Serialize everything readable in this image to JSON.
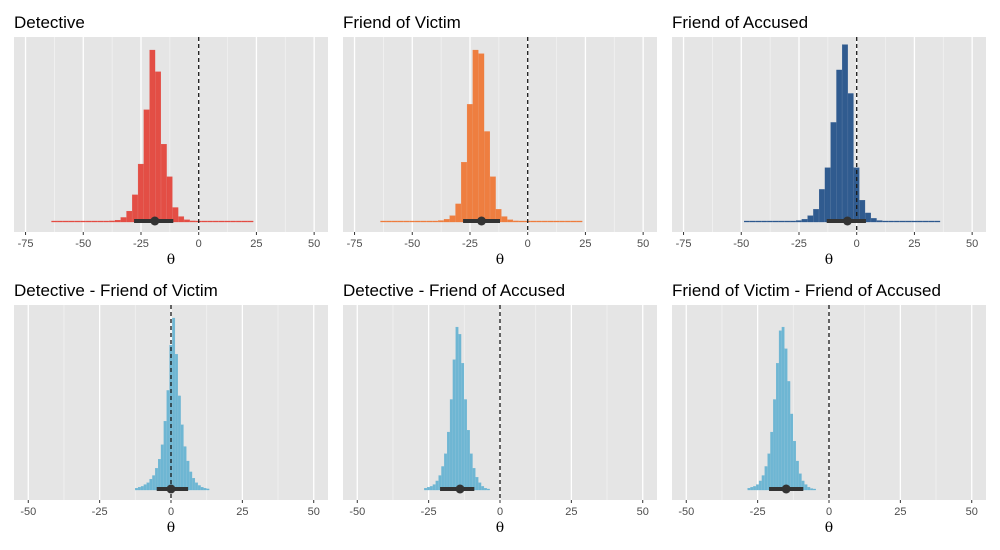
{
  "chart_data": [
    {
      "type": "histogram",
      "title": "Detective",
      "xlabel": "θ",
      "xlim": [
        -80,
        56
      ],
      "xticks": [
        -75,
        -50,
        -25,
        0,
        25,
        50
      ],
      "ref_line": 0,
      "color": "#e3463c",
      "bin_width": 2.5,
      "bins": [
        {
          "x": -62.5,
          "h": 0.004
        },
        {
          "x": -60,
          "h": 0.004
        },
        {
          "x": -57.5,
          "h": 0.004
        },
        {
          "x": -55,
          "h": 0.004
        },
        {
          "x": -52.5,
          "h": 0.004
        },
        {
          "x": -50,
          "h": 0.004
        },
        {
          "x": -47.5,
          "h": 0.004
        },
        {
          "x": -45,
          "h": 0.004
        },
        {
          "x": -42.5,
          "h": 0.004
        },
        {
          "x": -40,
          "h": 0.004
        },
        {
          "x": -37.5,
          "h": 0.006
        },
        {
          "x": -35,
          "h": 0.01
        },
        {
          "x": -32.5,
          "h": 0.025
        },
        {
          "x": -30,
          "h": 0.06
        },
        {
          "x": -27.5,
          "h": 0.15
        },
        {
          "x": -25,
          "h": 0.32
        },
        {
          "x": -22.5,
          "h": 0.62
        },
        {
          "x": -20,
          "h": 0.95
        },
        {
          "x": -17.5,
          "h": 0.83
        },
        {
          "x": -15,
          "h": 0.43
        },
        {
          "x": -12.5,
          "h": 0.25
        },
        {
          "x": -10,
          "h": 0.08
        },
        {
          "x": -7.5,
          "h": 0.03
        },
        {
          "x": -5,
          "h": 0.012
        },
        {
          "x": -2.5,
          "h": 0.006
        },
        {
          "x": 0,
          "h": 0.004
        },
        {
          "x": 2.5,
          "h": 0.004
        },
        {
          "x": 5,
          "h": 0.004
        },
        {
          "x": 7.5,
          "h": 0.004
        },
        {
          "x": 10,
          "h": 0.004
        },
        {
          "x": 12.5,
          "h": 0.004
        },
        {
          "x": 15,
          "h": 0.004
        },
        {
          "x": 17.5,
          "h": 0.004
        },
        {
          "x": 20,
          "h": 0.004
        },
        {
          "x": 22.5,
          "h": 0.004
        }
      ],
      "point": -19,
      "interval": [
        -28,
        -11
      ]
    },
    {
      "type": "histogram",
      "title": "Friend of Victim",
      "xlabel": "θ",
      "xlim": [
        -80,
        56
      ],
      "xticks": [
        -75,
        -50,
        -25,
        0,
        25,
        50
      ],
      "ref_line": 0,
      "color": "#ee7837",
      "bin_width": 2.5,
      "bins": [
        {
          "x": -62.5,
          "h": 0.004
        },
        {
          "x": -60,
          "h": 0.004
        },
        {
          "x": -57.5,
          "h": 0.004
        },
        {
          "x": -55,
          "h": 0.004
        },
        {
          "x": -52.5,
          "h": 0.004
        },
        {
          "x": -50,
          "h": 0.004
        },
        {
          "x": -47.5,
          "h": 0.004
        },
        {
          "x": -45,
          "h": 0.004
        },
        {
          "x": -42.5,
          "h": 0.004
        },
        {
          "x": -40,
          "h": 0.005
        },
        {
          "x": -37.5,
          "h": 0.008
        },
        {
          "x": -35,
          "h": 0.015
        },
        {
          "x": -32.5,
          "h": 0.035
        },
        {
          "x": -30,
          "h": 0.1
        },
        {
          "x": -27.5,
          "h": 0.33
        },
        {
          "x": -25,
          "h": 0.65
        },
        {
          "x": -22.5,
          "h": 0.95
        },
        {
          "x": -20,
          "h": 0.93
        },
        {
          "x": -17.5,
          "h": 0.5
        },
        {
          "x": -15,
          "h": 0.25
        },
        {
          "x": -12.5,
          "h": 0.07
        },
        {
          "x": -10,
          "h": 0.03
        },
        {
          "x": -7.5,
          "h": 0.012
        },
        {
          "x": -5,
          "h": 0.006
        },
        {
          "x": -2.5,
          "h": 0.004
        },
        {
          "x": 0,
          "h": 0.004
        },
        {
          "x": 2.5,
          "h": 0.004
        },
        {
          "x": 5,
          "h": 0.004
        },
        {
          "x": 7.5,
          "h": 0.004
        },
        {
          "x": 10,
          "h": 0.004
        },
        {
          "x": 12.5,
          "h": 0.004
        },
        {
          "x": 15,
          "h": 0.004
        },
        {
          "x": 17.5,
          "h": 0.004
        },
        {
          "x": 20,
          "h": 0.004
        },
        {
          "x": 22.5,
          "h": 0.004
        }
      ],
      "point": -20,
      "interval": [
        -28,
        -12
      ]
    },
    {
      "type": "histogram",
      "title": "Friend of Accused",
      "xlabel": "θ",
      "xlim": [
        -80,
        56
      ],
      "xticks": [
        -75,
        -50,
        -25,
        0,
        25,
        50
      ],
      "ref_line": 0,
      "color": "#26538a",
      "bin_width": 2.5,
      "bins": [
        {
          "x": -47.5,
          "h": 0.004
        },
        {
          "x": -45,
          "h": 0.004
        },
        {
          "x": -42.5,
          "h": 0.004
        },
        {
          "x": -40,
          "h": 0.004
        },
        {
          "x": -37.5,
          "h": 0.004
        },
        {
          "x": -35,
          "h": 0.004
        },
        {
          "x": -32.5,
          "h": 0.004
        },
        {
          "x": -30,
          "h": 0.004
        },
        {
          "x": -27.5,
          "h": 0.005
        },
        {
          "x": -25,
          "h": 0.008
        },
        {
          "x": -22.5,
          "h": 0.015
        },
        {
          "x": -20,
          "h": 0.035
        },
        {
          "x": -17.5,
          "h": 0.07
        },
        {
          "x": -15,
          "h": 0.18
        },
        {
          "x": -12.5,
          "h": 0.3
        },
        {
          "x": -10,
          "h": 0.55
        },
        {
          "x": -7.5,
          "h": 0.84
        },
        {
          "x": -5,
          "h": 0.98
        },
        {
          "x": -2.5,
          "h": 0.71
        },
        {
          "x": 0,
          "h": 0.3
        },
        {
          "x": 2.5,
          "h": 0.12
        },
        {
          "x": 5,
          "h": 0.05
        },
        {
          "x": 7.5,
          "h": 0.02
        },
        {
          "x": 10,
          "h": 0.008
        },
        {
          "x": 12.5,
          "h": 0.005
        },
        {
          "x": 15,
          "h": 0.004
        },
        {
          "x": 17.5,
          "h": 0.004
        },
        {
          "x": 20,
          "h": 0.004
        },
        {
          "x": 22.5,
          "h": 0.004
        },
        {
          "x": 25,
          "h": 0.004
        },
        {
          "x": 27.5,
          "h": 0.004
        },
        {
          "x": 30,
          "h": 0.004
        },
        {
          "x": 32.5,
          "h": 0.004
        },
        {
          "x": 35,
          "h": 0.004
        }
      ],
      "point": -4,
      "interval": [
        -13,
        4
      ]
    },
    {
      "type": "histogram",
      "title": "Detective - Friend of Victim",
      "xlabel": "θ",
      "xlim": [
        -55,
        55
      ],
      "xticks": [
        -50,
        -25,
        0,
        25,
        50
      ],
      "ref_line": 0,
      "color": "#67b3d2",
      "bin_width": 1,
      "bins": [
        {
          "x": -12,
          "h": 0.01
        },
        {
          "x": -11,
          "h": 0.015
        },
        {
          "x": -10,
          "h": 0.02
        },
        {
          "x": -9,
          "h": 0.03
        },
        {
          "x": -8,
          "h": 0.04
        },
        {
          "x": -7,
          "h": 0.06
        },
        {
          "x": -6,
          "h": 0.08
        },
        {
          "x": -5,
          "h": 0.12
        },
        {
          "x": -4,
          "h": 0.17
        },
        {
          "x": -3,
          "h": 0.25
        },
        {
          "x": -2,
          "h": 0.38
        },
        {
          "x": -1,
          "h": 0.55
        },
        {
          "x": 0,
          "h": 0.8
        },
        {
          "x": 1,
          "h": 0.95
        },
        {
          "x": 2,
          "h": 0.75
        },
        {
          "x": 3,
          "h": 0.52
        },
        {
          "x": 4,
          "h": 0.36
        },
        {
          "x": 5,
          "h": 0.24
        },
        {
          "x": 6,
          "h": 0.16
        },
        {
          "x": 7,
          "h": 0.1
        },
        {
          "x": 8,
          "h": 0.065
        },
        {
          "x": 9,
          "h": 0.04
        },
        {
          "x": 10,
          "h": 0.025
        },
        {
          "x": 11,
          "h": 0.015
        },
        {
          "x": 12,
          "h": 0.01
        },
        {
          "x": 13,
          "h": 0.006
        }
      ],
      "point": 0,
      "interval": [
        -5,
        6
      ]
    },
    {
      "type": "histogram",
      "title": "Detective - Friend of Accused",
      "xlabel": "θ",
      "xlim": [
        -55,
        55
      ],
      "xticks": [
        -50,
        -25,
        0,
        25,
        50
      ],
      "ref_line": 0,
      "color": "#67b3d2",
      "bin_width": 1,
      "bins": [
        {
          "x": -26,
          "h": 0.01
        },
        {
          "x": -25,
          "h": 0.015
        },
        {
          "x": -24,
          "h": 0.02
        },
        {
          "x": -23,
          "h": 0.03
        },
        {
          "x": -22,
          "h": 0.05
        },
        {
          "x": -21,
          "h": 0.08
        },
        {
          "x": -20,
          "h": 0.13
        },
        {
          "x": -19,
          "h": 0.2
        },
        {
          "x": -18,
          "h": 0.32
        },
        {
          "x": -17,
          "h": 0.5
        },
        {
          "x": -16,
          "h": 0.72
        },
        {
          "x": -15,
          "h": 0.9
        },
        {
          "x": -14,
          "h": 0.86
        },
        {
          "x": -13,
          "h": 0.7
        },
        {
          "x": -12,
          "h": 0.5
        },
        {
          "x": -11,
          "h": 0.33
        },
        {
          "x": -10,
          "h": 0.2
        },
        {
          "x": -9,
          "h": 0.12
        },
        {
          "x": -8,
          "h": 0.07
        },
        {
          "x": -7,
          "h": 0.04
        },
        {
          "x": -6,
          "h": 0.02
        },
        {
          "x": -5,
          "h": 0.01
        },
        {
          "x": -4,
          "h": 0.005
        }
      ],
      "point": -14,
      "interval": [
        -21,
        -9
      ]
    },
    {
      "type": "histogram",
      "title": "Friend of Victim - Friend of Accused",
      "xlabel": "θ",
      "xlim": [
        -55,
        55
      ],
      "xticks": [
        -50,
        -25,
        0,
        25,
        50
      ],
      "ref_line": 0,
      "color": "#67b3d2",
      "bin_width": 1,
      "bins": [
        {
          "x": -28,
          "h": 0.01
        },
        {
          "x": -27,
          "h": 0.015
        },
        {
          "x": -26,
          "h": 0.02
        },
        {
          "x": -25,
          "h": 0.03
        },
        {
          "x": -24,
          "h": 0.05
        },
        {
          "x": -23,
          "h": 0.08
        },
        {
          "x": -22,
          "h": 0.13
        },
        {
          "x": -21,
          "h": 0.2
        },
        {
          "x": -20,
          "h": 0.32
        },
        {
          "x": -19,
          "h": 0.5
        },
        {
          "x": -18,
          "h": 0.7
        },
        {
          "x": -17,
          "h": 0.88
        },
        {
          "x": -16,
          "h": 0.9
        },
        {
          "x": -15,
          "h": 0.78
        },
        {
          "x": -14,
          "h": 0.6
        },
        {
          "x": -13,
          "h": 0.42
        },
        {
          "x": -12,
          "h": 0.27
        },
        {
          "x": -11,
          "h": 0.16
        },
        {
          "x": -10,
          "h": 0.09
        },
        {
          "x": -9,
          "h": 0.05
        },
        {
          "x": -8,
          "h": 0.03
        },
        {
          "x": -7,
          "h": 0.015
        },
        {
          "x": -6,
          "h": 0.008
        },
        {
          "x": -5,
          "h": 0.004
        }
      ],
      "point": -15,
      "interval": [
        -21,
        -9
      ]
    }
  ]
}
